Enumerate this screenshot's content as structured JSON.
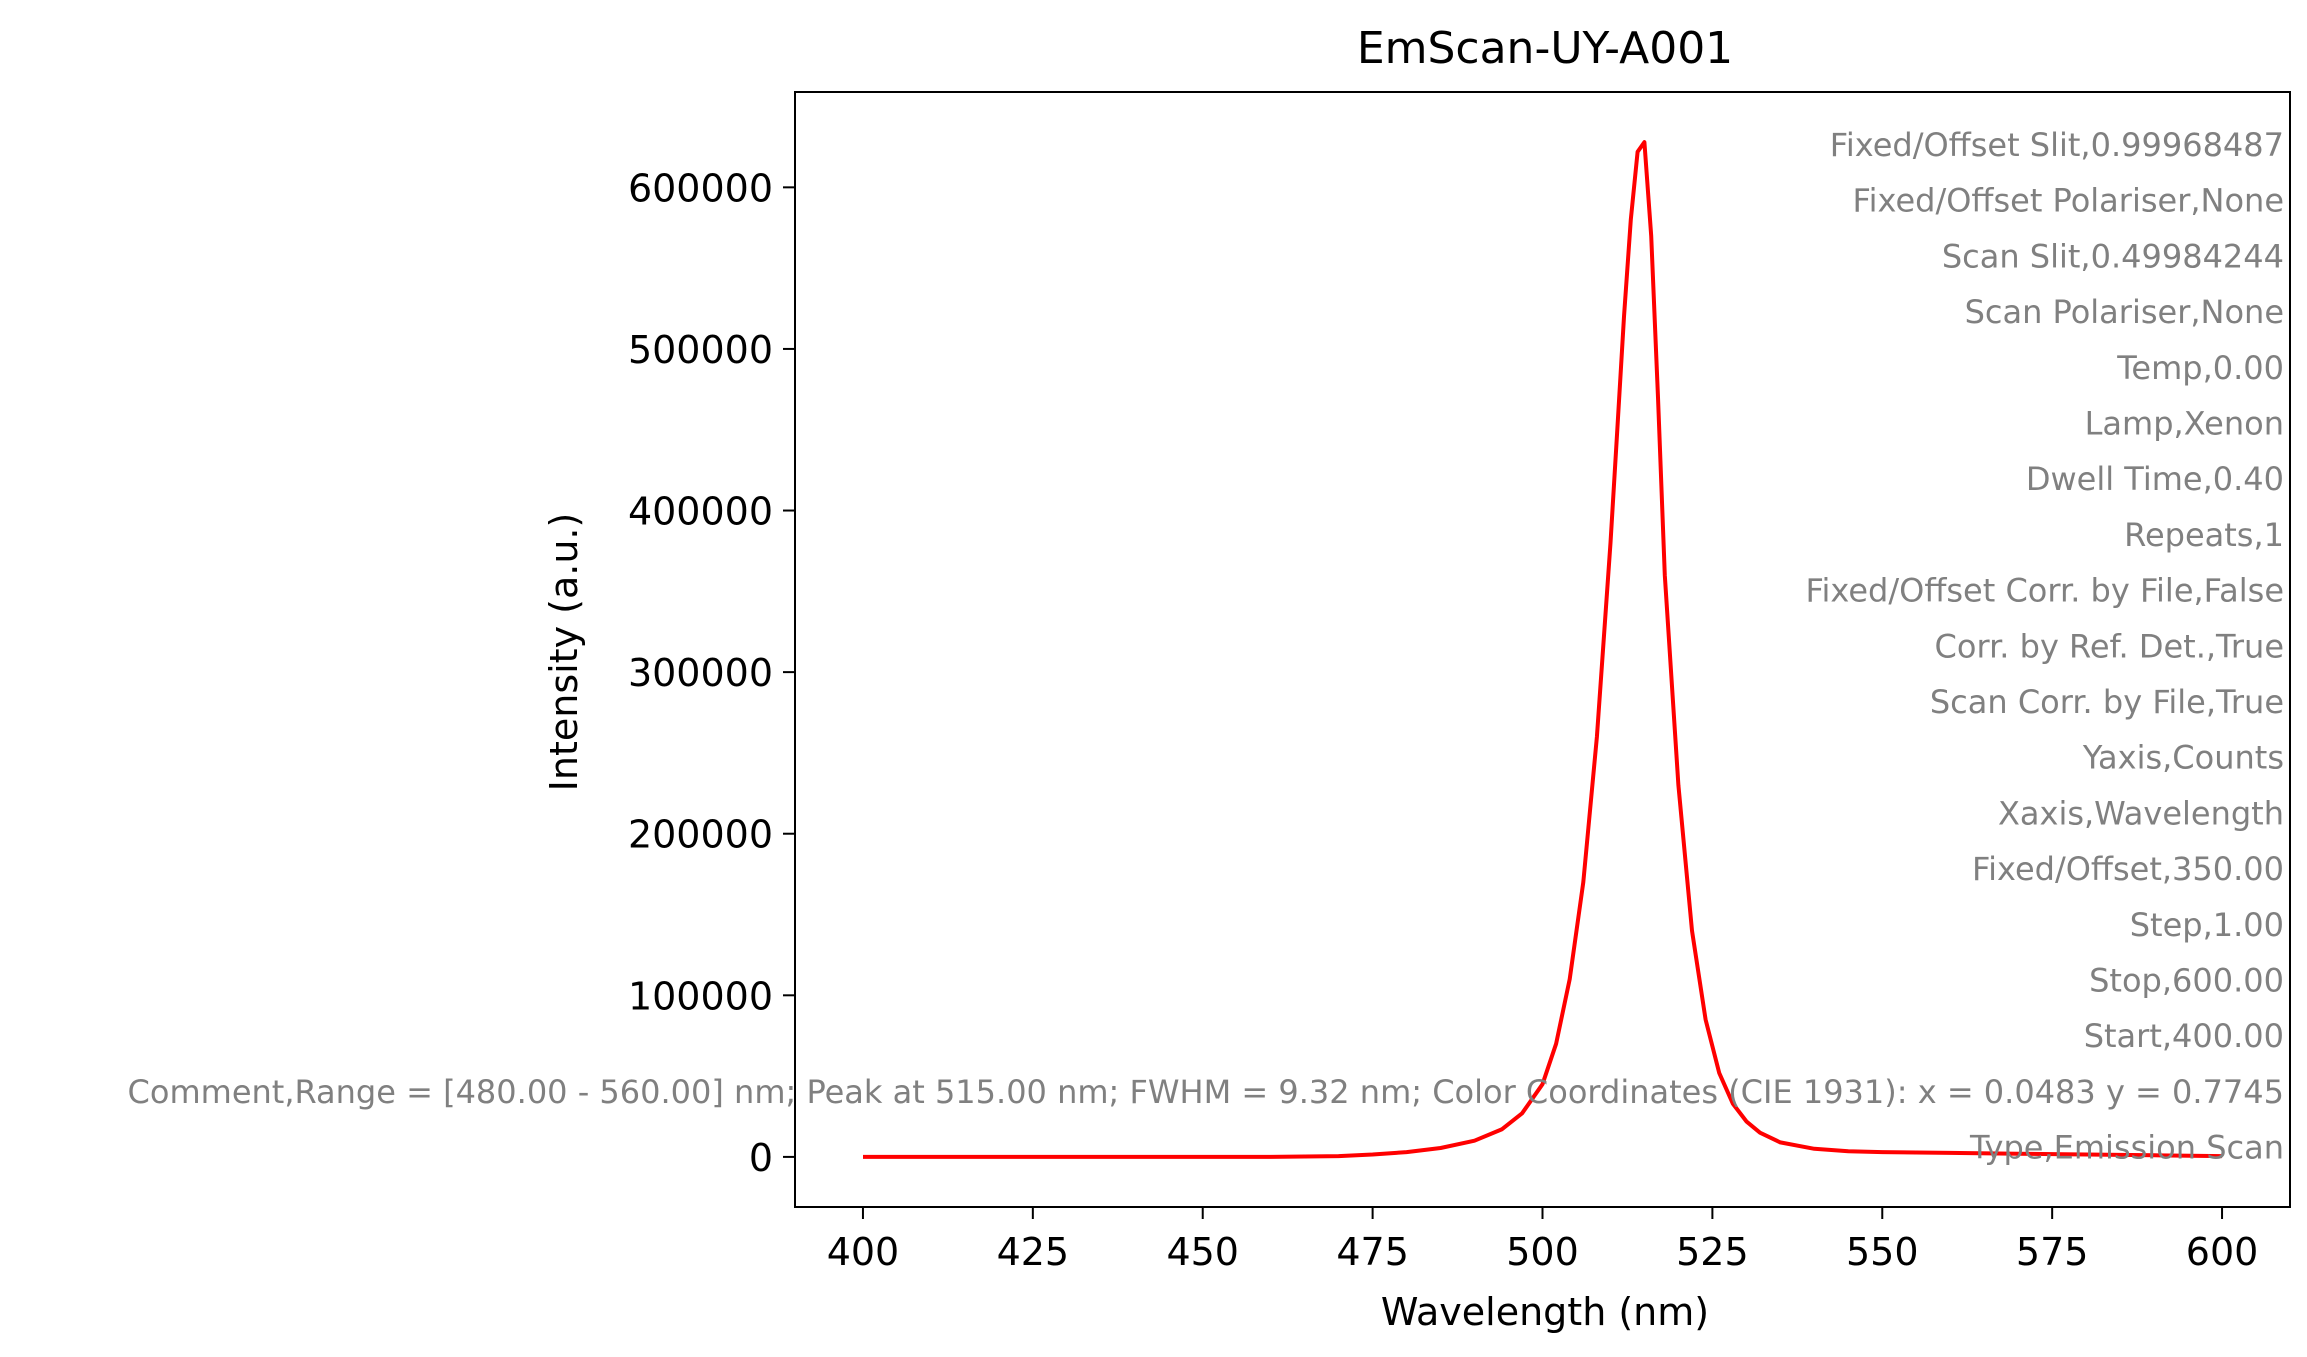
{
  "chart_data": {
    "type": "line",
    "title": "EmScan-UY-A001",
    "xlabel": "Wavelength (nm)",
    "ylabel": "Intensity (a.u.)",
    "xlim": [
      390,
      610
    ],
    "ylim": [
      -31000,
      659000
    ],
    "grid": false,
    "xticks": [
      400,
      425,
      450,
      475,
      500,
      525,
      550,
      575,
      600
    ],
    "yticks": [
      0,
      100000,
      200000,
      300000,
      400000,
      500000,
      600000
    ],
    "series": [
      {
        "color": "#ff0000",
        "x": [
          400,
          420,
          440,
          460,
          470,
          475,
          480,
          485,
          490,
          494,
          497,
          500,
          502,
          504,
          506,
          508,
          510,
          511,
          512,
          513,
          514,
          515,
          516,
          517,
          518,
          520,
          522,
          524,
          526,
          528,
          530,
          532,
          535,
          540,
          545,
          550,
          560,
          570,
          580,
          590,
          600
        ],
        "y": [
          0,
          0,
          0,
          0,
          500,
          1500,
          3000,
          5500,
          10000,
          17000,
          27000,
          45000,
          70000,
          110000,
          170000,
          260000,
          380000,
          450000,
          520000,
          580000,
          622000,
          628000,
          570000,
          470000,
          360000,
          230000,
          140000,
          85000,
          52000,
          33000,
          22000,
          15000,
          9000,
          5000,
          3500,
          3000,
          2500,
          2000,
          1500,
          1000,
          500
        ]
      }
    ],
    "annotations": [
      "Fixed/Offset Slit,0.99968487",
      "Fixed/Offset Polariser,None",
      "Scan Slit,0.49984244",
      "Scan Polariser,None",
      "Temp,0.00",
      "Lamp,Xenon",
      "Dwell Time,0.40",
      "Repeats,1",
      "Fixed/Offset Corr. by File,False",
      "Corr. by Ref. Det.,True",
      "Scan Corr. by File,True",
      "Yaxis,Counts",
      "Xaxis,Wavelength",
      "Fixed/Offset,350.00",
      "Step,1.00",
      "Stop,600.00",
      "Start,400.00",
      "Comment,Range = [480.00 - 560.00] nm; Peak at 515.00 nm; FWHM = 9.32 nm; Color Coordinates (CIE 1931): x = 0.0483 y = 0.7745",
      "Type,Emission Scan"
    ],
    "annotation_color": "#808080",
    "axis_color": "#000000"
  }
}
